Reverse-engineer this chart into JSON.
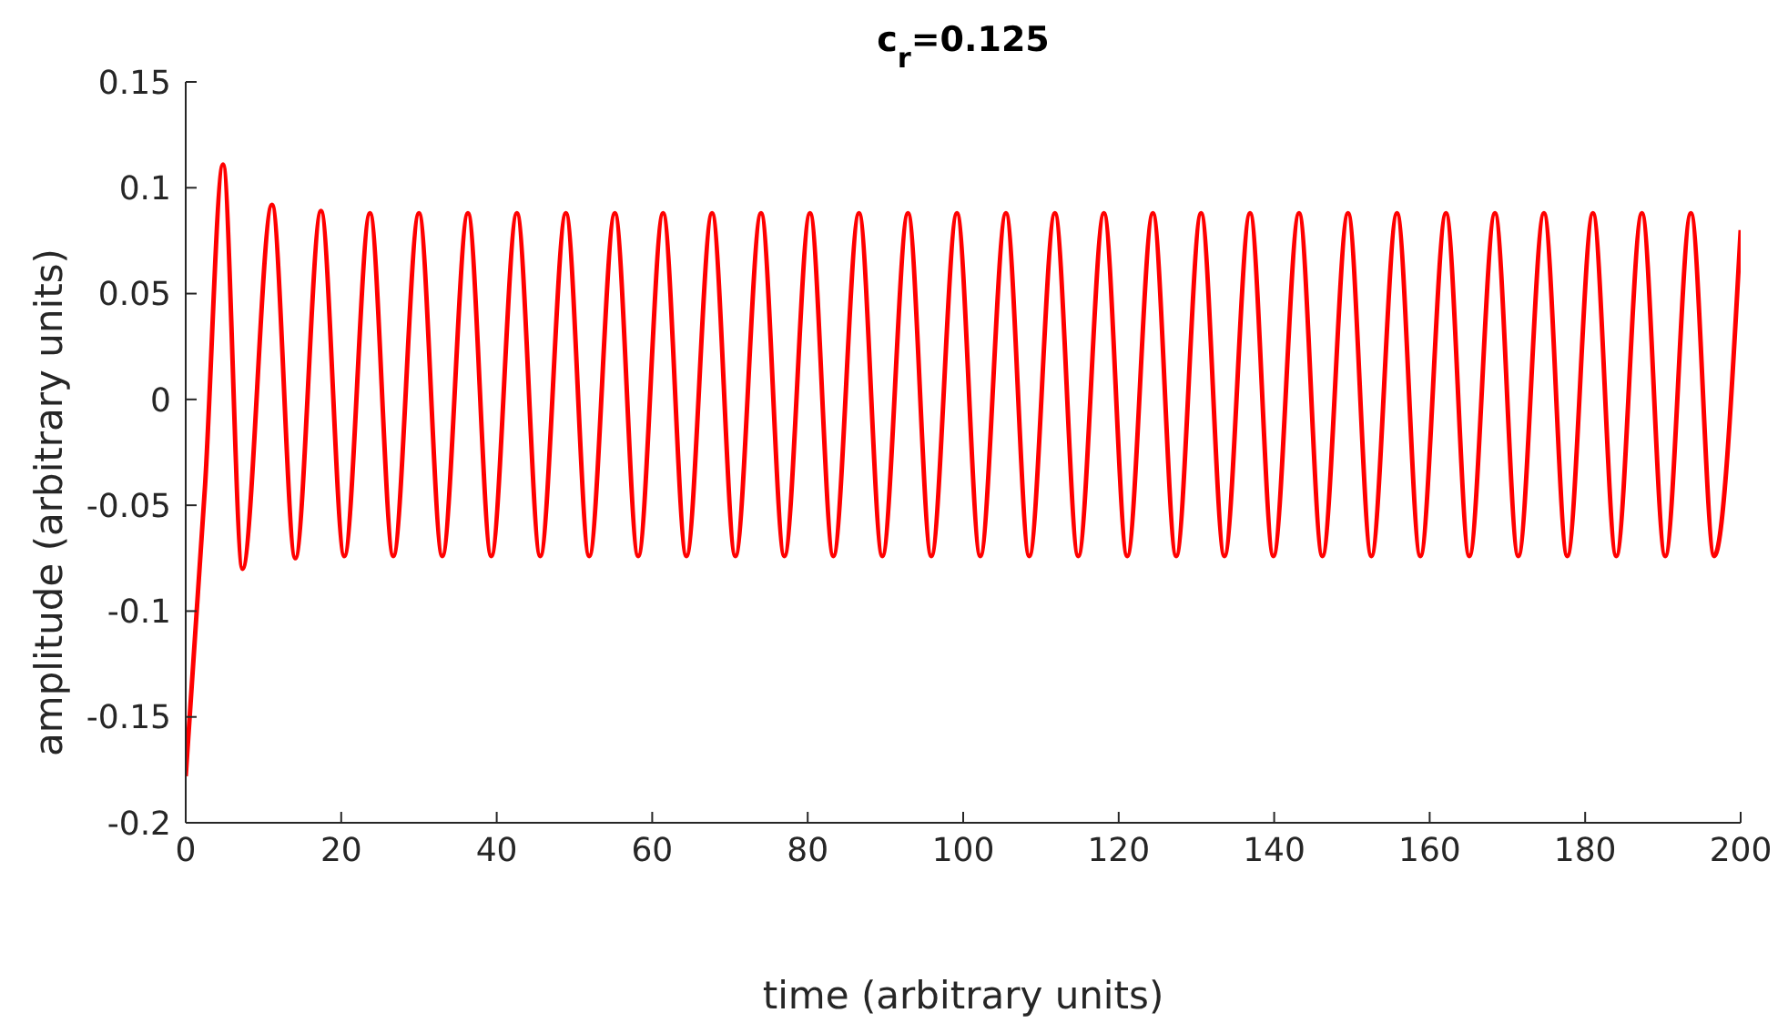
{
  "chart_data": {
    "type": "line",
    "title": "c$_{r}$=0.125",
    "xlabel": "time (arbitrary units)",
    "ylabel": "amplitude (arbitrary units)",
    "xlim": [
      0,
      200
    ],
    "xticks": [
      0,
      20,
      40,
      60,
      80,
      100,
      120,
      140,
      160,
      180,
      200
    ],
    "ylim": [
      -0.2,
      0.15
    ],
    "yticks": [
      -0.2,
      -0.15,
      -0.1,
      -0.05,
      0,
      0.05,
      0.1,
      0.15
    ],
    "grid": false,
    "legend": false,
    "marker": "none",
    "line_style": "solid",
    "x": [
      0,
      2.5,
      4.8,
      7.3,
      11.1,
      14.1,
      17.4,
      20.4,
      23.7,
      26.7,
      30.0,
      33.0,
      36.3,
      39.3,
      42.6,
      45.6,
      48.9,
      51.9,
      55.2,
      58.2,
      61.4,
      64.4,
      67.7,
      70.7,
      74.0,
      77.0,
      80.3,
      83.3,
      86.6,
      89.6,
      92.9,
      95.9,
      99.2,
      102.2,
      105.5,
      108.5,
      111.8,
      114.8,
      118.1,
      121.1,
      124.4,
      127.4,
      130.6,
      133.6,
      136.9,
      139.9,
      143.2,
      146.2,
      149.5,
      152.5,
      155.8,
      158.8,
      162.1,
      165.1,
      168.4,
      171.4,
      174.7,
      177.7,
      181.0,
      184.0,
      187.3,
      190.3,
      193.6,
      196.6,
      200
    ],
    "series": [
      {
        "color": "#ff0000",
        "values": [
          -0.178,
          -0.04,
          0.111,
          -0.08,
          0.092,
          -0.075,
          0.089,
          -0.074,
          0.088,
          -0.074,
          0.088,
          -0.074,
          0.088,
          -0.074,
          0.088,
          -0.074,
          0.088,
          -0.074,
          0.088,
          -0.074,
          0.088,
          -0.074,
          0.088,
          -0.074,
          0.088,
          -0.074,
          0.088,
          -0.074,
          0.088,
          -0.074,
          0.088,
          -0.074,
          0.088,
          -0.074,
          0.088,
          -0.074,
          0.088,
          -0.074,
          0.088,
          -0.074,
          0.088,
          -0.074,
          0.088,
          -0.074,
          0.088,
          -0.074,
          0.088,
          -0.074,
          0.088,
          -0.074,
          0.088,
          -0.074,
          0.088,
          -0.074,
          0.088,
          -0.074,
          0.088,
          -0.074,
          0.088,
          -0.074,
          0.088,
          -0.074,
          0.088,
          -0.074,
          0.08
        ]
      }
    ]
  }
}
